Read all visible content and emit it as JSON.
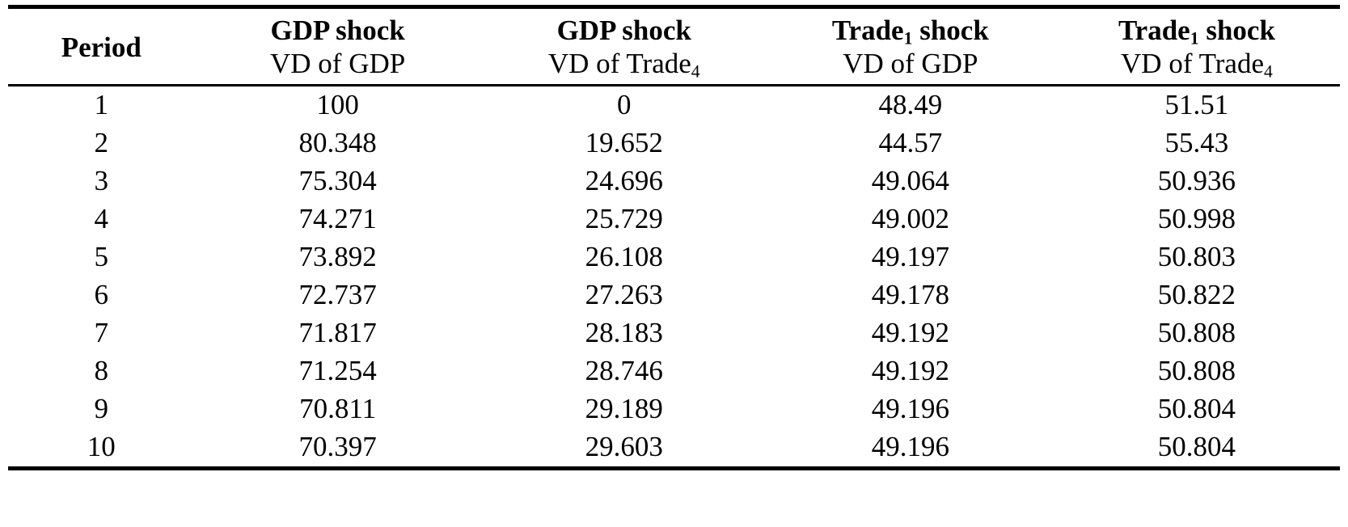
{
  "table": {
    "header": {
      "period": "Period",
      "col1": {
        "line1_pre": "GDP shock",
        "line1_sub": "",
        "line1_post": "",
        "line2_pre": "VD of GDP",
        "line2_sub": ""
      },
      "col2": {
        "line1_pre": "GDP shock",
        "line1_sub": "",
        "line1_post": "",
        "line2_pre": "VD of Trade",
        "line2_sub": "4"
      },
      "col3": {
        "line1_pre": "Trade",
        "line1_sub": "1",
        "line1_post": " shock",
        "line2_pre": "VD of GDP",
        "line2_sub": ""
      },
      "col4": {
        "line1_pre": "Trade",
        "line1_sub": "1",
        "line1_post": " shock",
        "line2_pre": "VD of Trade",
        "line2_sub": "4"
      }
    },
    "rows": [
      {
        "period": "1",
        "c1": "100",
        "c2": "0",
        "c3": "48.49",
        "c4": "51.51"
      },
      {
        "period": "2",
        "c1": "80.348",
        "c2": "19.652",
        "c3": "44.57",
        "c4": "55.43"
      },
      {
        "period": "3",
        "c1": "75.304",
        "c2": "24.696",
        "c3": "49.064",
        "c4": "50.936"
      },
      {
        "period": "4",
        "c1": "74.271",
        "c2": "25.729",
        "c3": "49.002",
        "c4": "50.998"
      },
      {
        "period": "5",
        "c1": "73.892",
        "c2": "26.108",
        "c3": "49.197",
        "c4": "50.803"
      },
      {
        "period": "6",
        "c1": "72.737",
        "c2": "27.263",
        "c3": "49.178",
        "c4": "50.822"
      },
      {
        "period": "7",
        "c1": "71.817",
        "c2": "28.183",
        "c3": "49.192",
        "c4": "50.808"
      },
      {
        "period": "8",
        "c1": "71.254",
        "c2": "28.746",
        "c3": "49.192",
        "c4": "50.808"
      },
      {
        "period": "9",
        "c1": "70.811",
        "c2": "29.189",
        "c3": "49.196",
        "c4": "50.804"
      },
      {
        "period": "10",
        "c1": "70.397",
        "c2": "29.603",
        "c3": "49.196",
        "c4": "50.804"
      }
    ]
  }
}
